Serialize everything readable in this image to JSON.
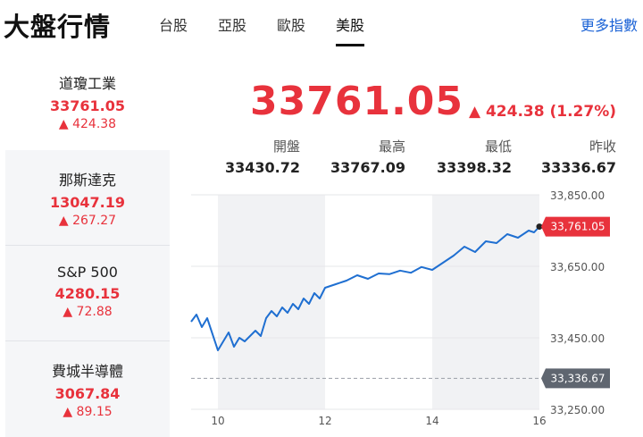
{
  "header": {
    "title": "大盤行情",
    "tabs": [
      "台股",
      "亞股",
      "歐股",
      "美股"
    ],
    "active_tab": "美股",
    "more_link": "更多指數"
  },
  "sidebar": {
    "items": [
      {
        "name": "道瓊工業",
        "price": "33761.05",
        "change": "▲ 424.38"
      },
      {
        "name": "那斯達克",
        "price": "13047.19",
        "change": "▲ 267.27"
      },
      {
        "name": "S&P 500",
        "price": "4280.15",
        "change": "▲ 72.88"
      },
      {
        "name": "費城半導體",
        "price": "3067.84",
        "change": "▲ 89.15"
      }
    ]
  },
  "main": {
    "price": "33761.05",
    "change": "▲ 424.38 (1.27%)",
    "stats": [
      {
        "label": "開盤",
        "value": "33430.72"
      },
      {
        "label": "最高",
        "value": "33767.09"
      },
      {
        "label": "最低",
        "value": "33398.32"
      },
      {
        "label": "昨收",
        "value": "33336.67"
      }
    ]
  },
  "colors": {
    "up": "#e8323c",
    "line": "#1f6fd1",
    "prev_close_tag": "#5f6670"
  },
  "chart_data": {
    "type": "line",
    "x_ticks": [
      "10",
      "12",
      "14",
      "16"
    ],
    "y_ticks": [
      "33,850.00",
      "33,650.00",
      "33,450.00",
      "33,250.00"
    ],
    "ylim": [
      33250,
      33850
    ],
    "xlim": [
      9.5,
      16
    ],
    "current_label": "33,761.05",
    "current_value": 33761.05,
    "prev_close_label": "33,336.67",
    "prev_close_value": 33336.67,
    "x": [
      9.5,
      9.6,
      9.7,
      9.8,
      9.9,
      10.0,
      10.1,
      10.2,
      10.3,
      10.4,
      10.5,
      10.6,
      10.7,
      10.8,
      10.9,
      11.0,
      11.1,
      11.2,
      11.3,
      11.4,
      11.5,
      11.6,
      11.7,
      11.8,
      11.9,
      12.0,
      12.2,
      12.4,
      12.6,
      12.8,
      13.0,
      13.2,
      13.4,
      13.6,
      13.8,
      14.0,
      14.2,
      14.4,
      14.6,
      14.8,
      15.0,
      15.2,
      15.4,
      15.6,
      15.8,
      15.9,
      16.0
    ],
    "y": [
      33495,
      33515,
      33480,
      33505,
      33460,
      33415,
      33440,
      33465,
      33425,
      33450,
      33440,
      33455,
      33470,
      33455,
      33505,
      33525,
      33510,
      33535,
      33520,
      33545,
      33530,
      33560,
      33545,
      33575,
      33560,
      33590,
      33600,
      33610,
      33625,
      33615,
      33630,
      33628,
      33638,
      33632,
      33648,
      33640,
      33660,
      33680,
      33705,
      33690,
      33720,
      33715,
      33740,
      33730,
      33750,
      33745,
      33761
    ]
  }
}
